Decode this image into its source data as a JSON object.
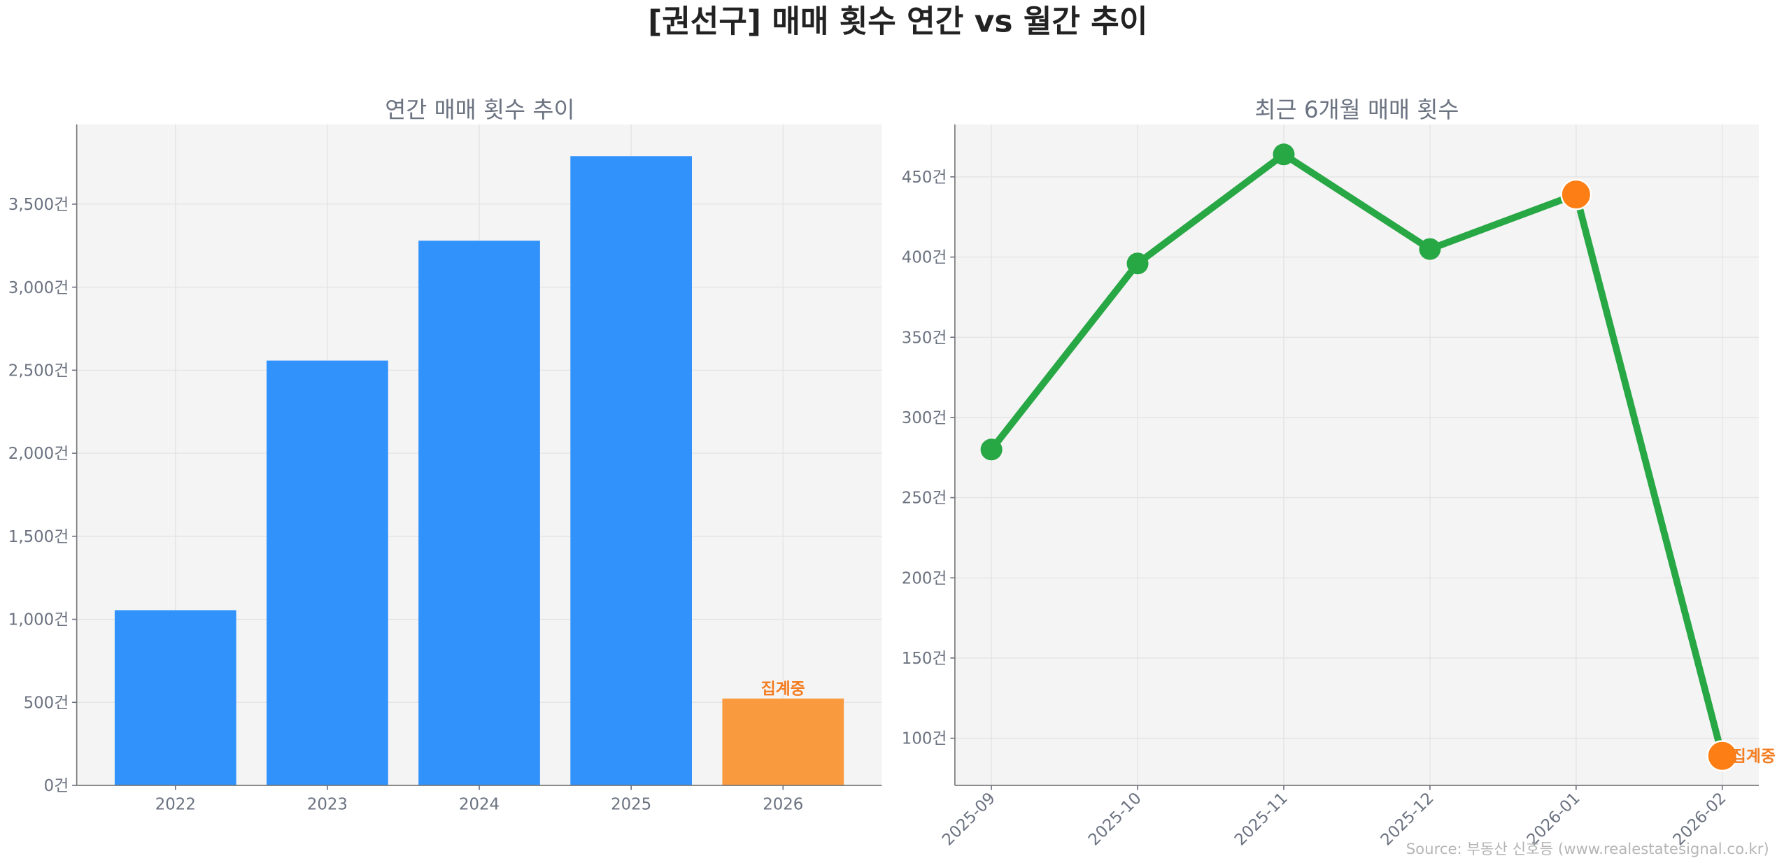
{
  "title": "[권선구] 매매 횟수 연간 vs 월간 추이",
  "source": "Source: 부동산 신호등 (www.realestatesignal.co.kr)",
  "colors": {
    "bar": "#3192fc",
    "bar_partial": "#f99a3f",
    "line": "#28a745",
    "marker_partial": "#fd7e14",
    "note": "#f47c20",
    "plot_bg": "#f4f4f4"
  },
  "chart_data": [
    {
      "type": "bar",
      "title": "연간 매매 횟수 추이",
      "categories": [
        "2022",
        "2023",
        "2024",
        "2025",
        "2026"
      ],
      "values": [
        1055,
        2558,
        3280,
        3789,
        523
      ],
      "partial_index": 4,
      "annotation": "집계중",
      "ylim": [
        0,
        3980
      ],
      "yticks": [
        0,
        500,
        1000,
        1500,
        2000,
        2500,
        3000,
        3500
      ],
      "ytick_labels": [
        "0건",
        "500건",
        "1,000건",
        "1,500건",
        "2,000건",
        "2,500건",
        "3,000건",
        "3,500건"
      ],
      "grid": true
    },
    {
      "type": "line",
      "title": "최근 6개월 매매 횟수",
      "categories": [
        "2025-09",
        "2025-10",
        "2025-11",
        "2025-12",
        "2026-01",
        "2026-02"
      ],
      "values": [
        280,
        396,
        464,
        405,
        439,
        89
      ],
      "highlight_indices": [
        4,
        5
      ],
      "annotation": "집계중",
      "ylim": [
        70.6,
        482.7
      ],
      "yticks": [
        100,
        150,
        200,
        250,
        300,
        350,
        400,
        450
      ],
      "ytick_labels": [
        "100건",
        "150건",
        "200건",
        "250건",
        "300건",
        "350건",
        "400건",
        "450건"
      ],
      "xtick_rotation": 45,
      "grid": true
    }
  ]
}
